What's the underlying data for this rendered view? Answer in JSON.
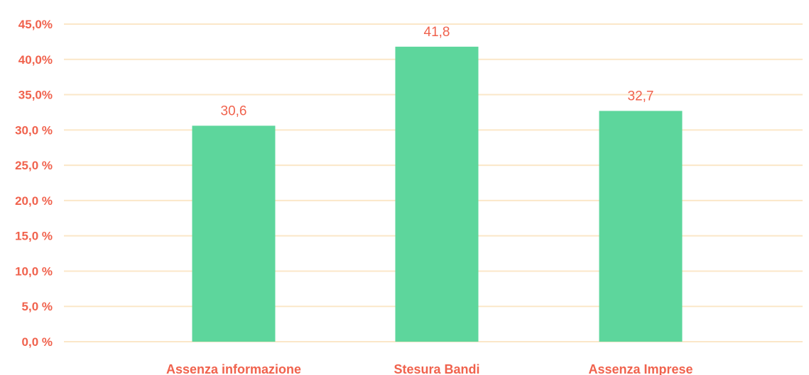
{
  "chart_data": {
    "type": "bar",
    "categories": [
      "Assenza informazione",
      "Stesura Bandi",
      "Assenza Imprese"
    ],
    "values": [
      30.6,
      41.8,
      32.7
    ],
    "data_labels": [
      "30,6",
      "41,8",
      "32,7"
    ],
    "ylim": [
      0,
      45
    ],
    "yticks": [
      0,
      5,
      10,
      15,
      20,
      25,
      30,
      35,
      40,
      45
    ],
    "ytick_labels": [
      "0,0 %",
      "5,0 %",
      "10,0 %",
      "15,0 %",
      "20,0 %",
      "25,0 %",
      "30,0 %",
      "35,0%",
      "40,0%",
      "45,0%"
    ],
    "grid": true,
    "legend": "none",
    "colors": {
      "bar": "#5dd69c",
      "text": "#f0624d",
      "grid": "#fbe7c8"
    }
  }
}
